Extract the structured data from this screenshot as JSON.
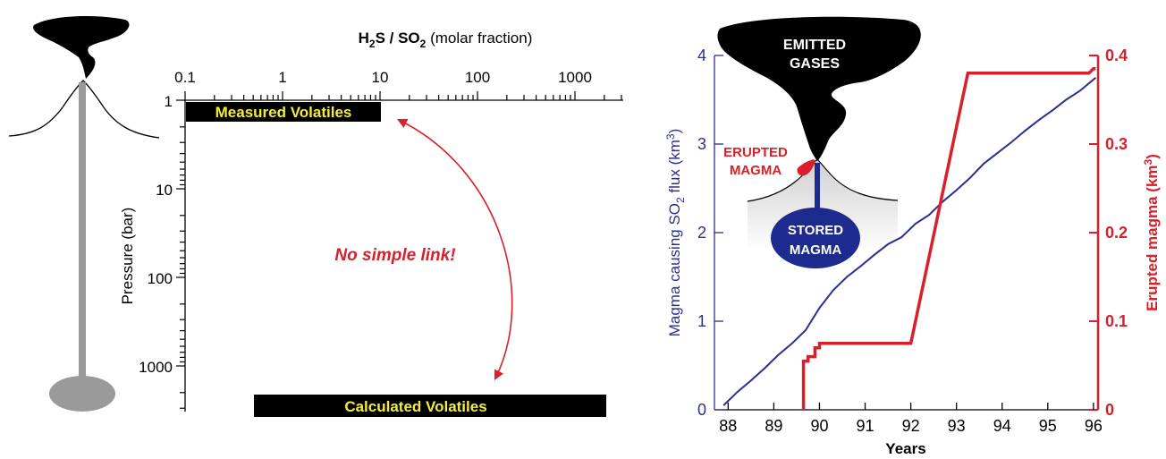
{
  "left_chart": {
    "title_html": [
      "H",
      "2",
      "S / SO",
      "2",
      " (molar fraction)"
    ],
    "x_ticks": [
      "0.1",
      "1",
      "10",
      "100",
      "1000"
    ],
    "y_label": "Pressure (bar)",
    "y_ticks": [
      "1",
      "10",
      "100",
      "1000"
    ],
    "measured_label": "Measured Volatiles",
    "calculated_label": "Calculated Volatiles",
    "annotation": "No simple link!",
    "colors": {
      "bar": "#000000",
      "bar_text": "#f2ee3a",
      "annotation": "#d8202a",
      "conduit": "#9a9a9a"
    }
  },
  "right_chart": {
    "x_label": "Years",
    "y_left_label": "Magma causing SO2 flux (km3)",
    "y_right_label": "Erupted magma (km3)",
    "diagram": {
      "emitted": [
        "EMITTED",
        "GASES"
      ],
      "erupted": [
        "ERUPTED",
        "MAGMA"
      ],
      "stored": [
        "STORED",
        "MAGMA"
      ]
    },
    "colors": {
      "left_axis": "#2b2f8f",
      "right_axis": "#d8202a",
      "stored": "#1d2a8e"
    }
  },
  "chart_data": [
    {
      "type": "table",
      "title": "H2S / SO2 (molar fraction)",
      "xlabel": "H2S / SO2 (molar fraction)",
      "ylabel": "Pressure (bar)",
      "x_scale": "log",
      "y_scale": "log",
      "xlim": [
        0.1,
        3000
      ],
      "ylim": [
        1,
        3000
      ],
      "x_ticks": [
        0.1,
        1,
        10,
        100,
        1000
      ],
      "y_ticks": [
        1,
        10,
        100,
        1000
      ],
      "ranges": [
        {
          "name": "Measured Volatiles",
          "x": [
            0.1,
            10
          ],
          "pressure": 1.1
        },
        {
          "name": "Calculated Volatiles",
          "x": [
            0.5,
            1500
          ],
          "pressure": 4000
        }
      ],
      "annotations": [
        "No simple link!"
      ]
    },
    {
      "type": "line",
      "xlabel": "Years",
      "ylabel": "Magma causing SO2 flux (km3)",
      "y2label": "Erupted magma (km3)",
      "xlim": [
        87.7,
        96.1
      ],
      "ylim": [
        0,
        4
      ],
      "y2lim": [
        0,
        0.4
      ],
      "x_ticks": [
        88,
        89,
        90,
        91,
        92,
        93,
        94,
        95,
        96
      ],
      "y_ticks": [
        0,
        1,
        2,
        3,
        4
      ],
      "y2_ticks": [
        0,
        0.1,
        0.2,
        0.3,
        0.4
      ],
      "series": [
        {
          "name": "Magma causing SO2 flux",
          "axis": "left",
          "color": "#2b2f8f",
          "x": [
            87.9,
            88.2,
            88.5,
            88.8,
            89.1,
            89.4,
            89.7,
            90.0,
            90.3,
            90.6,
            90.9,
            91.2,
            91.5,
            91.8,
            92.1,
            92.4,
            92.7,
            93.0,
            93.3,
            93.6,
            93.9,
            94.2,
            94.5,
            94.8,
            95.1,
            95.4,
            95.7,
            96.05
          ],
          "values": [
            0.05,
            0.2,
            0.33,
            0.47,
            0.62,
            0.75,
            0.9,
            1.15,
            1.35,
            1.5,
            1.62,
            1.75,
            1.87,
            1.95,
            2.1,
            2.2,
            2.35,
            2.48,
            2.62,
            2.78,
            2.9,
            3.02,
            3.15,
            3.27,
            3.38,
            3.5,
            3.6,
            3.75
          ]
        },
        {
          "name": "Erupted magma",
          "axis": "right",
          "color": "#d8202a",
          "x": [
            89.65,
            89.65,
            89.75,
            89.75,
            89.9,
            89.9,
            90.0,
            90.0,
            91.9,
            92.0,
            93.25,
            95.9,
            96.0,
            96.05
          ],
          "values": [
            0.0,
            0.055,
            0.055,
            0.06,
            0.06,
            0.07,
            0.07,
            0.075,
            0.075,
            0.075,
            0.38,
            0.38,
            0.385,
            0.385
          ]
        }
      ]
    }
  ]
}
